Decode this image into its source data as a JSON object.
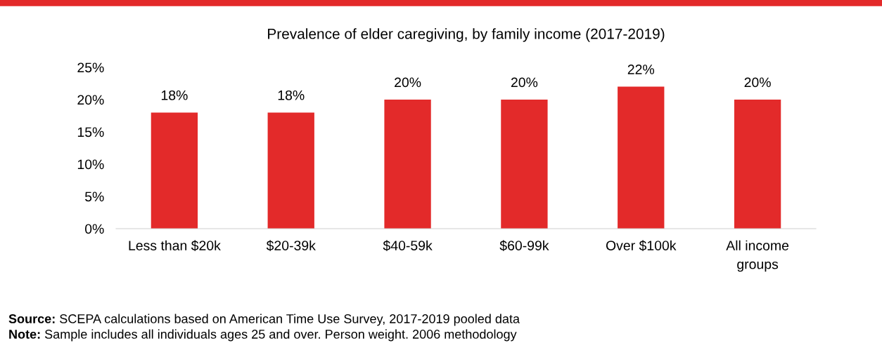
{
  "chart_data": {
    "type": "bar",
    "title": "Prevalence of elder caregiving, by family income (2017-2019)",
    "categories": [
      "Less than $20k",
      "$20-39k",
      "$40-59k",
      "$60-99k",
      "Over $100k",
      "All income\ngroups"
    ],
    "values": [
      18,
      18,
      20,
      20,
      22,
      20
    ],
    "color": "#e32a2a",
    "value_labels": [
      "18%",
      "18%",
      "20%",
      "20%",
      "22%",
      "20%"
    ],
    "ylim": [
      0,
      25
    ],
    "yticks": [
      {
        "value": 0,
        "label": "0%"
      },
      {
        "value": 5,
        "label": "5%"
      },
      {
        "value": 10,
        "label": "10%"
      },
      {
        "value": 15,
        "label": "15%"
      },
      {
        "value": 20,
        "label": "20%"
      },
      {
        "value": 25,
        "label": "25%"
      }
    ],
    "grid": false,
    "annotations": [
      "Source: SCEPA calculations based on American Time Use Survey, 2017-2019 pooled data",
      "Note: Sample includes all individuals ages 25 and over. Person weight. 2006 methodology"
    ]
  }
}
